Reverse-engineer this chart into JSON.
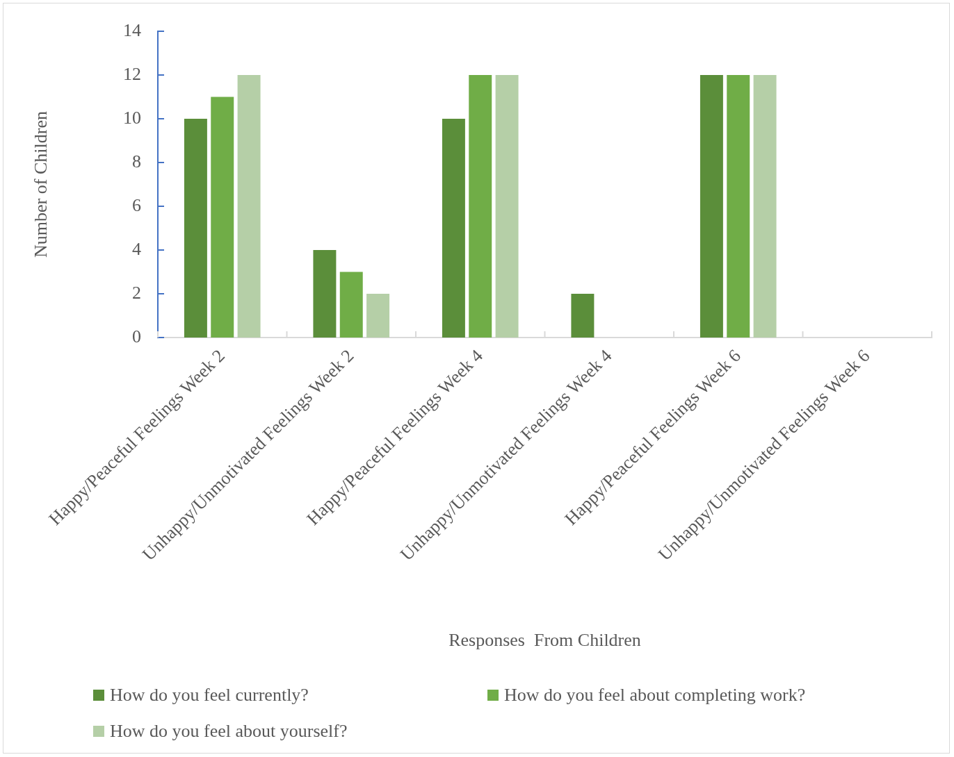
{
  "chart_data": {
    "type": "bar",
    "xlabel": "Responses  From Children",
    "ylabel": "Number of Children",
    "categories": [
      "Happy/Peaceful Feelings Week 2",
      "Unhappy/Unmotivated Feelings Week 2",
      "Happy/Peaceful Feelings Week 4",
      "Unhappy/Unmotivated Feelings Week 4",
      "Happy/Peaceful Feelings Week 6",
      "Unhappy/Unmotivated Feelings Week 6"
    ],
    "series": [
      {
        "name": "How do you feel currently?",
        "color": "#5b8e3a",
        "values": [
          10,
          4,
          10,
          2,
          12,
          0
        ]
      },
      {
        "name": "How do you feel about completing work?",
        "color": "#70ad47",
        "values": [
          11,
          3,
          12,
          0,
          12,
          0
        ]
      },
      {
        "name": "How do you feel about yourself?",
        "color": "#b5cfa7",
        "values": [
          12,
          2,
          12,
          0,
          12,
          0
        ]
      }
    ],
    "ylim": [
      0,
      14
    ],
    "yticks": [
      0,
      2,
      4,
      6,
      8,
      10,
      12,
      14
    ],
    "grid": false,
    "legend": "bottom"
  }
}
